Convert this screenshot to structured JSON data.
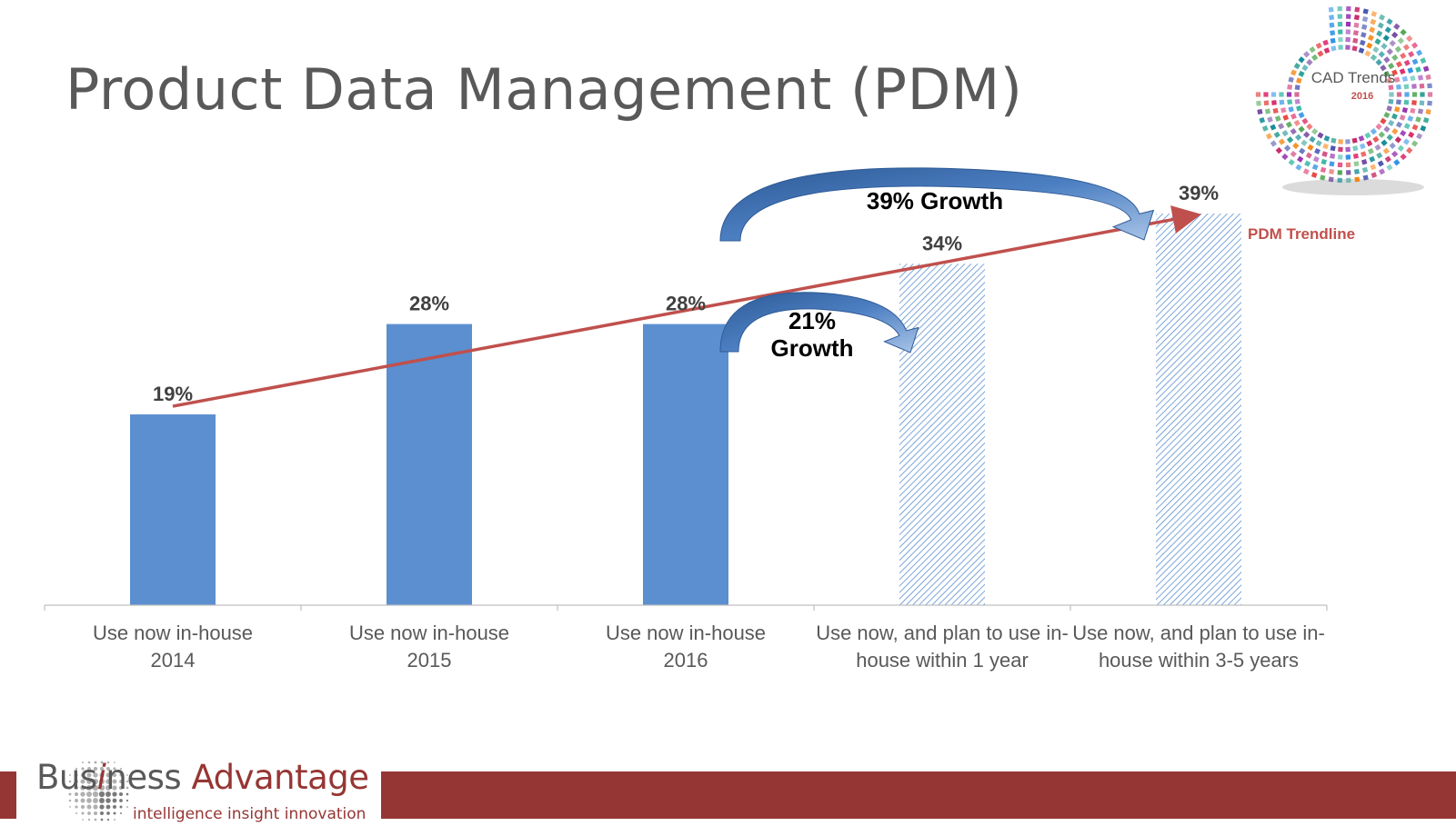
{
  "page": {
    "title": "Product Data Management (PDM)"
  },
  "colors": {
    "bar_solid": "#5B8FD0",
    "bar_hatch": "#5B8FD0",
    "trendline": "#C0504D",
    "label_dark": "#404040",
    "footer": "#963634",
    "arrow_fill": "#4472B0"
  },
  "badge": {
    "label": "CAD Trends",
    "year": "2016"
  },
  "footer": {
    "brand_prefix": "Bus",
    "brand_i": "i",
    "brand_mid": "ness ",
    "brand_suffix": "Advantage",
    "tagline": "intelligence  insight  innovation"
  },
  "chart_data": {
    "type": "bar",
    "title": "",
    "xlabel": "",
    "ylabel": "",
    "ylim": [
      0,
      45
    ],
    "unit": "%",
    "categories": [
      "Use now in-house 2014",
      "Use now in-house 2015",
      "Use now in-house 2016",
      "Use now, and plan to use in-house within 1 year",
      "Use now, and plan to use in-house within 3-5 years"
    ],
    "category_lines": [
      [
        "Use now in-house",
        "2014"
      ],
      [
        "Use now in-house",
        "2015"
      ],
      [
        "Use now in-house",
        "2016"
      ],
      [
        "Use now, and plan to use in-",
        "house within 1 year"
      ],
      [
        "Use now, and plan to use in-",
        "house within 3-5 years"
      ]
    ],
    "values": [
      19,
      28,
      28,
      34,
      39
    ],
    "data_labels": [
      "19%",
      "28%",
      "28%",
      "34%",
      "39%"
    ],
    "projected": [
      false,
      false,
      false,
      true,
      true
    ],
    "grid": false,
    "trendline": {
      "label": "PDM Trendline",
      "from_value": 19,
      "to_value": 39
    },
    "annotations": [
      {
        "text": "39% Growth",
        "from_category": 2,
        "to_category": 4
      },
      {
        "text_lines": [
          "21%",
          "Growth"
        ],
        "from_category": 2,
        "to_category": 3
      }
    ]
  }
}
